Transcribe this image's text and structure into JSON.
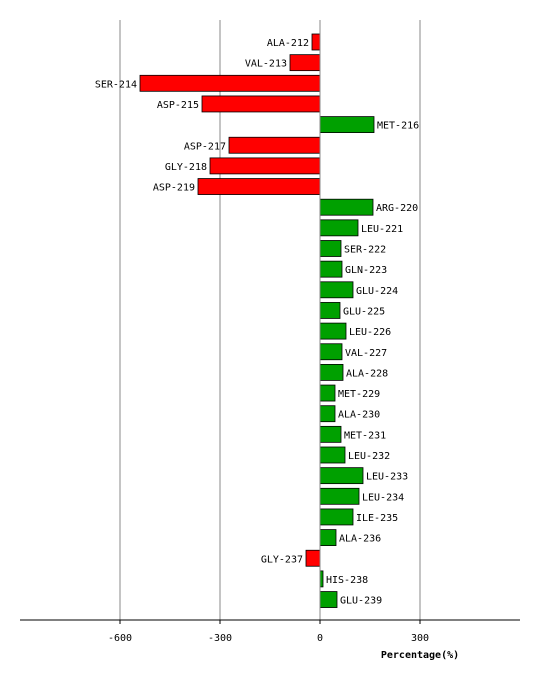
{
  "chart_data": {
    "type": "bar",
    "orientation": "horizontal",
    "title": "",
    "xlabel": "Percentage(%)",
    "ylabel": "",
    "xlim": [
      -900,
      600
    ],
    "xticks": [
      -600,
      -300,
      0,
      300
    ],
    "grid": true,
    "legend": "none",
    "colors": {
      "positive": "#00a000",
      "negative": "#ff0000",
      "grid": "#888888",
      "axis": "#000000"
    },
    "categories": [
      "ALA-212",
      "VAL-213",
      "SER-214",
      "ASP-215",
      "MET-216",
      "ASP-217",
      "GLY-218",
      "ASP-219",
      "ARG-220",
      "LEU-221",
      "SER-222",
      "GLN-223",
      "GLU-224",
      "GLU-225",
      "LEU-226",
      "VAL-227",
      "ALA-228",
      "MET-229",
      "ALA-230",
      "MET-231",
      "LEU-232",
      "LEU-233",
      "LEU-234",
      "ILE-235",
      "ALA-236",
      "GLY-237",
      "HIS-238",
      "GLU-239"
    ],
    "values": [
      -24,
      -90,
      -540,
      -354,
      162,
      -273,
      -330,
      -366,
      159,
      114,
      63,
      66,
      99,
      60,
      78,
      66,
      69,
      45,
      45,
      63,
      75,
      129,
      117,
      99,
      48,
      -42,
      9,
      51
    ]
  }
}
